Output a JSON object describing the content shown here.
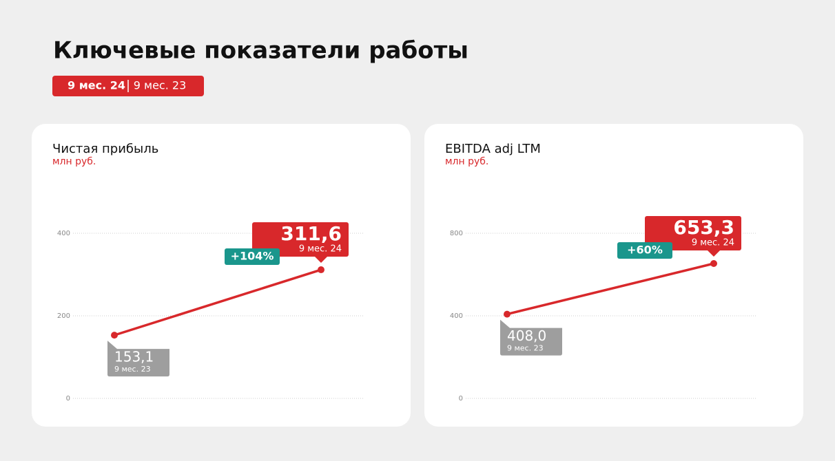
{
  "header": {
    "title": "Ключевые показатели работы",
    "toggle": [
      "9 мес. 24",
      "9 мес. 23"
    ]
  },
  "chart_data": [
    {
      "type": "line",
      "title": "Чистая прибыль",
      "subtitle": "млн руб.",
      "categories": [
        "9 мес. 23",
        "9 мес. 24"
      ],
      "values": [
        153.1,
        311.6
      ],
      "value_labels": [
        "153,1",
        "311,6"
      ],
      "change_label": "+104%",
      "color": "#d8282b",
      "ylim": [
        0,
        400
      ],
      "yticks": [
        0,
        200,
        400
      ],
      "grid": true
    },
    {
      "type": "line",
      "title": "EBITDA adj LTM",
      "subtitle": "млн руб.",
      "categories": [
        "9 мес. 23",
        "9 мес. 24"
      ],
      "values": [
        408.0,
        653.3
      ],
      "value_labels": [
        "408,0",
        "653,3"
      ],
      "change_label": "+60%",
      "color": "#d8282b",
      "ylim": [
        0,
        800
      ],
      "yticks": [
        0,
        400,
        800
      ],
      "grid": true
    }
  ]
}
